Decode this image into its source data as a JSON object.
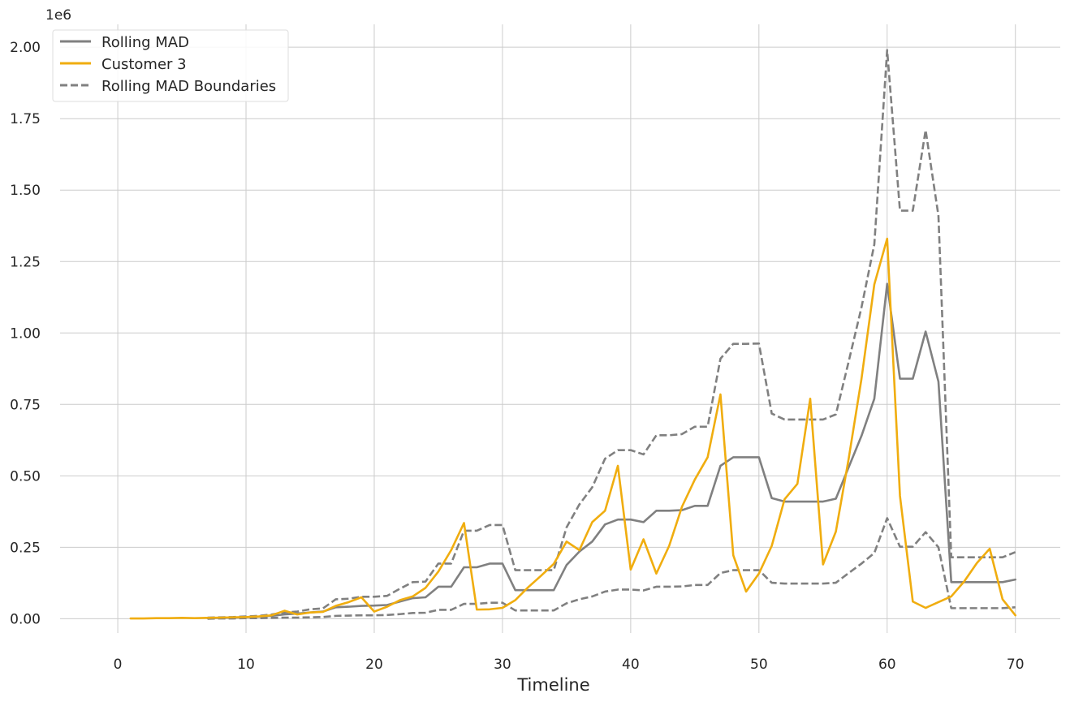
{
  "chart_data": {
    "type": "line",
    "xlabel": "Timeline",
    "ylabel": "",
    "y_offset_label": "1e6",
    "xlim": [
      -4.5,
      73.5
    ],
    "ylim": [
      -0.05,
      2.08
    ],
    "x_ticks": [
      0,
      10,
      20,
      30,
      40,
      50,
      60,
      70
    ],
    "x_tick_labels": [
      "0",
      "10",
      "20",
      "30",
      "40",
      "50",
      "60",
      "70"
    ],
    "y_ticks": [
      0,
      0.25,
      0.5,
      0.75,
      1.0,
      1.25,
      1.5,
      1.75,
      2.0
    ],
    "y_tick_labels": [
      "0.00",
      "0.25",
      "0.50",
      "0.75",
      "1.00",
      "1.25",
      "1.50",
      "1.75",
      "2.00"
    ],
    "grid": true,
    "legend_position": "top-left",
    "colors": {
      "mad": "#808080",
      "customer": "#f0ad0f",
      "grid": "#cccccc"
    },
    "legend": [
      {
        "label": "Rolling MAD",
        "color": "#808080",
        "style": "solid"
      },
      {
        "label": "Customer 3",
        "color": "#f0ad0f",
        "style": "solid"
      },
      {
        "label": "Rolling MAD Boundaries",
        "color": "#808080",
        "style": "dashed"
      }
    ],
    "series": [
      {
        "name": "Rolling MAD",
        "style": "solid",
        "color": "#808080",
        "x": [
          7,
          8,
          9,
          10,
          11,
          12,
          13,
          14,
          15,
          16,
          17,
          18,
          19,
          20,
          21,
          22,
          23,
          24,
          25,
          26,
          27,
          28,
          29,
          30,
          31,
          32,
          33,
          34,
          35,
          36,
          37,
          38,
          39,
          40,
          41,
          42,
          43,
          44,
          45,
          46,
          47,
          48,
          49,
          50,
          51,
          52,
          53,
          54,
          55,
          56,
          57,
          58,
          59,
          60,
          61,
          62,
          63,
          64,
          65,
          66,
          67,
          68,
          69,
          70
        ],
        "y": [
          0.002,
          0.003,
          0.004,
          0.005,
          0.007,
          0.01,
          0.015,
          0.018,
          0.022,
          0.025,
          0.04,
          0.042,
          0.045,
          0.046,
          0.048,
          0.06,
          0.072,
          0.075,
          0.112,
          0.112,
          0.18,
          0.18,
          0.193,
          0.193,
          0.1,
          0.1,
          0.1,
          0.1,
          0.188,
          0.235,
          0.27,
          0.33,
          0.347,
          0.347,
          0.338,
          0.378,
          0.378,
          0.38,
          0.395,
          0.395,
          0.535,
          0.565,
          0.565,
          0.565,
          0.422,
          0.41,
          0.41,
          0.41,
          0.41,
          0.42,
          0.53,
          0.64,
          0.77,
          1.172,
          0.84,
          0.84,
          1.005,
          0.83,
          0.128,
          0.128,
          0.128,
          0.128,
          0.128,
          0.137
        ]
      },
      {
        "name": "Customer 3",
        "style": "solid",
        "color": "#f0ad0f",
        "x": [
          1,
          2,
          3,
          4,
          5,
          6,
          7,
          8,
          9,
          10,
          11,
          12,
          13,
          14,
          15,
          16,
          17,
          18,
          19,
          20,
          21,
          22,
          23,
          24,
          25,
          26,
          27,
          28,
          29,
          30,
          31,
          32,
          33,
          34,
          35,
          36,
          37,
          38,
          39,
          40,
          41,
          42,
          43,
          44,
          45,
          46,
          47,
          48,
          49,
          50,
          51,
          52,
          53,
          54,
          55,
          56,
          57,
          58,
          59,
          60,
          61,
          62,
          63,
          64,
          65,
          66,
          67,
          68,
          69,
          70
        ],
        "y": [
          0.001,
          0.001,
          0.002,
          0.002,
          0.003,
          0.002,
          0.003,
          0.004,
          0.005,
          0.006,
          0.008,
          0.012,
          0.028,
          0.015,
          0.022,
          0.024,
          0.045,
          0.058,
          0.075,
          0.025,
          0.042,
          0.065,
          0.078,
          0.108,
          0.165,
          0.24,
          0.335,
          0.032,
          0.033,
          0.038,
          0.065,
          0.11,
          0.15,
          0.192,
          0.27,
          0.24,
          0.338,
          0.378,
          0.535,
          0.172,
          0.278,
          0.158,
          0.255,
          0.392,
          0.487,
          0.565,
          0.785,
          0.222,
          0.095,
          0.158,
          0.255,
          0.418,
          0.472,
          0.77,
          0.19,
          0.305,
          0.56,
          0.84,
          1.17,
          1.33,
          0.43,
          0.06,
          0.038,
          0.058,
          0.078,
          0.13,
          0.195,
          0.245,
          0.068,
          0.012
        ]
      },
      {
        "name": "Rolling MAD Boundaries",
        "style": "dashed",
        "color": "#808080",
        "x": [
          7,
          8,
          9,
          10,
          11,
          12,
          13,
          14,
          15,
          16,
          17,
          18,
          19,
          20,
          21,
          22,
          23,
          24,
          25,
          26,
          27,
          28,
          29,
          30,
          31,
          32,
          33,
          34,
          35,
          36,
          37,
          38,
          39,
          40,
          41,
          42,
          43,
          44,
          45,
          46,
          47,
          48,
          49,
          50,
          51,
          52,
          53,
          54,
          55,
          56,
          57,
          58,
          59,
          60,
          61,
          62,
          63,
          64,
          65,
          66,
          67,
          68,
          69,
          70
        ],
        "y": [
          0.004,
          0.005,
          0.006,
          0.008,
          0.01,
          0.015,
          0.022,
          0.025,
          0.033,
          0.036,
          0.068,
          0.07,
          0.077,
          0.077,
          0.08,
          0.105,
          0.128,
          0.13,
          0.193,
          0.193,
          0.308,
          0.308,
          0.328,
          0.328,
          0.17,
          0.17,
          0.17,
          0.17,
          0.32,
          0.4,
          0.46,
          0.56,
          0.59,
          0.59,
          0.575,
          0.642,
          0.642,
          0.646,
          0.672,
          0.672,
          0.91,
          0.962,
          0.962,
          0.963,
          0.718,
          0.697,
          0.697,
          0.697,
          0.697,
          0.715,
          0.9,
          1.09,
          1.31,
          1.99,
          1.428,
          1.428,
          1.71,
          1.41,
          0.215,
          0.215,
          0.215,
          0.215,
          0.215,
          0.233
        ]
      },
      {
        "name": "Rolling MAD Boundaries",
        "style": "dashed",
        "color": "#808080",
        "x": [
          7,
          8,
          9,
          10,
          11,
          12,
          13,
          14,
          15,
          16,
          17,
          18,
          19,
          20,
          21,
          22,
          23,
          24,
          25,
          26,
          27,
          28,
          29,
          30,
          31,
          32,
          33,
          34,
          35,
          36,
          37,
          38,
          39,
          40,
          41,
          42,
          43,
          44,
          45,
          46,
          47,
          48,
          49,
          50,
          51,
          52,
          53,
          54,
          55,
          56,
          57,
          58,
          59,
          60,
          61,
          62,
          63,
          64,
          65,
          66,
          67,
          68,
          69,
          70
        ],
        "y": [
          0.0,
          0.001,
          0.001,
          0.002,
          0.002,
          0.003,
          0.004,
          0.004,
          0.005,
          0.006,
          0.01,
          0.011,
          0.012,
          0.012,
          0.013,
          0.016,
          0.02,
          0.021,
          0.031,
          0.031,
          0.052,
          0.052,
          0.056,
          0.056,
          0.029,
          0.029,
          0.029,
          0.029,
          0.054,
          0.068,
          0.078,
          0.095,
          0.102,
          0.102,
          0.099,
          0.112,
          0.112,
          0.113,
          0.118,
          0.118,
          0.16,
          0.17,
          0.17,
          0.17,
          0.126,
          0.123,
          0.123,
          0.123,
          0.123,
          0.126,
          0.16,
          0.193,
          0.23,
          0.352,
          0.252,
          0.252,
          0.303,
          0.25,
          0.037,
          0.037,
          0.037,
          0.037,
          0.037,
          0.04
        ]
      }
    ]
  }
}
